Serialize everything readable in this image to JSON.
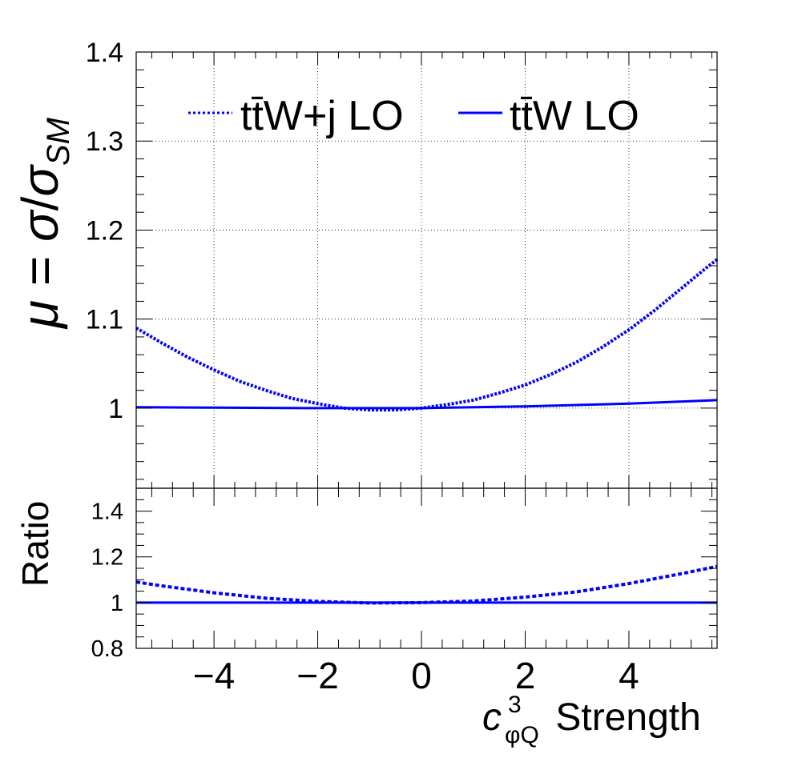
{
  "colors": {
    "series": "#0000ff",
    "axis": "#000000",
    "grid": "#000000",
    "background": "#ffffff"
  },
  "chart_data": [
    {
      "panel": "main",
      "type": "line",
      "ylabel_parts": {
        "mu": "μ",
        "eq": " = ",
        "sigma": "σ",
        "slash": "/",
        "sub": "SM"
      },
      "xlim": [
        -5.5,
        5.7
      ],
      "ylim": [
        0.91,
        1.4
      ],
      "yticks": [
        1,
        1.1,
        1.2,
        1.3,
        1.4
      ],
      "ytick_labels": [
        "1",
        "1.1",
        "1.2",
        "1.3",
        "1.4"
      ],
      "xticks": [
        -4,
        -2,
        0,
        2,
        4
      ],
      "grid": true,
      "legend_position": "top",
      "series": [
        {
          "name": "tt̄W+j LO",
          "style": "dotted",
          "x": [
            -5.5,
            -5.0,
            -4.5,
            -4.0,
            -3.5,
            -3.0,
            -2.5,
            -2.0,
            -1.5,
            -1.0,
            -0.5,
            0.0,
            0.5,
            1.0,
            1.5,
            2.0,
            2.5,
            3.0,
            3.5,
            4.0,
            4.5,
            5.0,
            5.5,
            5.7
          ],
          "y": [
            1.09,
            1.073,
            1.057,
            1.043,
            1.03,
            1.02,
            1.011,
            1.005,
            1.0,
            0.998,
            0.998,
            1.0,
            1.004,
            1.009,
            1.017,
            1.026,
            1.038,
            1.052,
            1.069,
            1.088,
            1.11,
            1.134,
            1.158,
            1.167
          ]
        },
        {
          "name": "tt̄W LO",
          "style": "solid",
          "x": [
            -5.5,
            -4.0,
            -2.0,
            0.0,
            2.0,
            4.0,
            5.7
          ],
          "y": [
            1.001,
            1.0005,
            1.0,
            1.0,
            1.002,
            1.005,
            1.009
          ]
        }
      ]
    },
    {
      "panel": "ratio",
      "type": "line",
      "ylabel": "Ratio",
      "xlabel_parts": {
        "c": "c",
        "sup": "3",
        "sub": "φQ",
        "rest": " Strength"
      },
      "xlim": [
        -5.5,
        5.7
      ],
      "ylim": [
        0.8,
        1.5
      ],
      "yticks": [
        0.8,
        1,
        1.2,
        1.4
      ],
      "ytick_labels": [
        "0.8",
        "1",
        "1.2",
        "1.4"
      ],
      "xticks": [
        -4,
        -2,
        0,
        2,
        4
      ],
      "xtick_labels": [
        "−4",
        "−2",
        "0",
        "2",
        "4"
      ],
      "grid": false,
      "series": [
        {
          "name": "tt̄W+j LO",
          "style": "dashed",
          "x": [
            -5.5,
            -5.0,
            -4.0,
            -3.0,
            -2.0,
            -1.0,
            0.0,
            1.0,
            2.0,
            3.0,
            4.0,
            5.0,
            5.7
          ],
          "y": [
            1.09,
            1.073,
            1.043,
            1.019,
            1.005,
            0.998,
            1.0,
            1.007,
            1.024,
            1.047,
            1.083,
            1.126,
            1.158
          ]
        },
        {
          "name": "tt̄W LO",
          "style": "solid",
          "x": [
            -5.5,
            5.7
          ],
          "y": [
            1.0,
            1.0
          ]
        }
      ]
    }
  ]
}
